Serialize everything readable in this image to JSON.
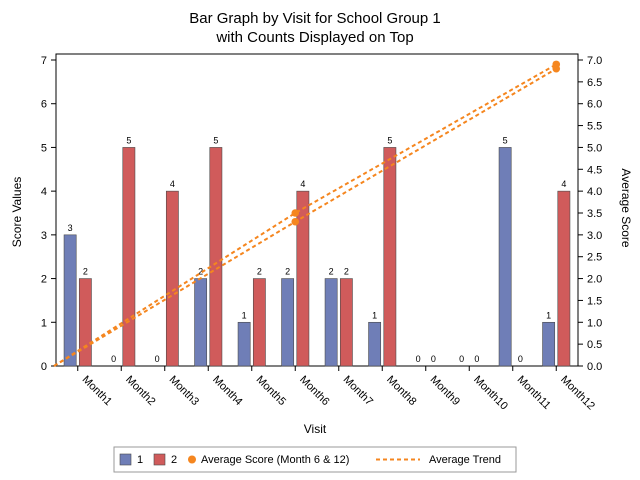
{
  "chart_data": {
    "type": "bar",
    "title": [
      "Bar Graph by Visit for School Group 1",
      "with Counts Displayed on Top"
    ],
    "xlabel": "Visit",
    "ylabel": "Score Values",
    "y2label": "Average Score",
    "categories": [
      "Month1",
      "Month2",
      "Month3",
      "Month4",
      "Month5",
      "Month6",
      "Month7",
      "Month8",
      "Month9",
      "Month10",
      "Month11",
      "Month12"
    ],
    "ylim": [
      0,
      7
    ],
    "yticks": [
      "0",
      "1",
      "2",
      "3",
      "4",
      "5",
      "6",
      "7"
    ],
    "y2lim": [
      0,
      7
    ],
    "y2ticks": [
      "0.0",
      "0.5",
      "1.0",
      "1.5",
      "2.0",
      "2.5",
      "3.0",
      "3.5",
      "4.0",
      "4.5",
      "5.0",
      "5.5",
      "6.0",
      "6.5",
      "7.0"
    ],
    "series": [
      {
        "name": "1",
        "color": "#6f7eb7",
        "values": [
          3,
          0,
          0,
          2,
          1,
          2,
          2,
          1,
          0,
          0,
          5,
          1
        ]
      },
      {
        "name": "2",
        "color": "#d05b5b",
        "values": [
          2,
          5,
          4,
          5,
          2,
          4,
          2,
          5,
          0,
          0,
          0,
          4
        ]
      }
    ],
    "average_points": {
      "name": "Average Score (Month 6 & 12)",
      "color": "#f5861f",
      "points": [
        {
          "x": "Month6",
          "y": 3.5
        },
        {
          "x": "Month6",
          "y": 3.3
        },
        {
          "x": "Month12",
          "y": 6.9
        },
        {
          "x": "Month12",
          "y": 6.8
        }
      ]
    },
    "trend_lines": {
      "name": "Average Trend",
      "color": "#f5861f",
      "lines": [
        [
          {
            "x": 0,
            "y": 0
          },
          {
            "x": "Month6",
            "y": 3.3
          },
          {
            "x": "Month12",
            "y": 6.8
          }
        ],
        [
          {
            "x": 0,
            "y": 0
          },
          {
            "x": "Month6",
            "y": 3.5
          },
          {
            "x": "Month12",
            "y": 6.9
          }
        ]
      ]
    },
    "grid": false,
    "legend_position": "bottom"
  }
}
